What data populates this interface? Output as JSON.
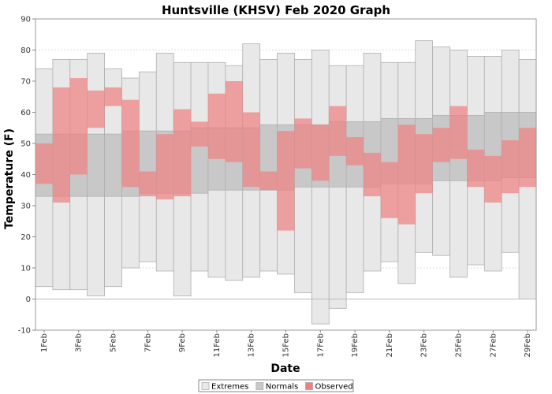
{
  "chart_data": {
    "type": "bar",
    "title": "Huntsville (KHSV) Feb 2020 Graph",
    "xlabel": "Date",
    "ylabel": "Temperature (F)",
    "ylim": [
      -10,
      90
    ],
    "yticks": [
      -10,
      0,
      10,
      20,
      30,
      40,
      50,
      60,
      70,
      80,
      90
    ],
    "grid": true,
    "legend_position": "bottom",
    "categories": [
      "1Feb",
      "2Feb",
      "3Feb",
      "4Feb",
      "5Feb",
      "6Feb",
      "7Feb",
      "8Feb",
      "9Feb",
      "10Feb",
      "11Feb",
      "12Feb",
      "13Feb",
      "14Feb",
      "15Feb",
      "16Feb",
      "17Feb",
      "18Feb",
      "19Feb",
      "20Feb",
      "21Feb",
      "22Feb",
      "23Feb",
      "24Feb",
      "25Feb",
      "26Feb",
      "27Feb",
      "28Feb",
      "29Feb"
    ],
    "xtick_labels": [
      "1Feb",
      "3Feb",
      "5Feb",
      "7Feb",
      "9Feb",
      "11Feb",
      "13Feb",
      "15Feb",
      "17Feb",
      "19Feb",
      "21Feb",
      "23Feb",
      "25Feb",
      "27Feb",
      "29Feb"
    ],
    "series": [
      {
        "name": "Extremes",
        "color": "#e8e8e8",
        "low": [
          4,
          3,
          3,
          1,
          4,
          10,
          12,
          9,
          1,
          9,
          7,
          6,
          7,
          9,
          8,
          2,
          -8,
          -3,
          2,
          9,
          12,
          5,
          15,
          14,
          7,
          11,
          9,
          15,
          0
        ],
        "high": [
          74,
          77,
          77,
          79,
          74,
          71,
          73,
          79,
          76,
          76,
          76,
          75,
          82,
          77,
          79,
          77,
          80,
          75,
          75,
          79,
          76,
          76,
          83,
          81,
          80,
          78,
          78,
          80,
          77
        ]
      },
      {
        "name": "Normals",
        "color": "#c8c8c8",
        "low": [
          33,
          33,
          33,
          33,
          33,
          33,
          34,
          34,
          34,
          34,
          35,
          35,
          35,
          35,
          35,
          36,
          36,
          36,
          36,
          36,
          37,
          37,
          37,
          38,
          38,
          38,
          38,
          39,
          39
        ],
        "high": [
          53,
          53,
          53,
          53,
          53,
          54,
          54,
          54,
          54,
          55,
          55,
          55,
          55,
          56,
          56,
          56,
          56,
          57,
          57,
          57,
          58,
          58,
          58,
          59,
          59,
          59,
          60,
          60,
          60
        ]
      },
      {
        "name": "Observed",
        "color": "#f08080",
        "low": [
          37,
          31,
          40,
          55,
          62,
          36,
          33,
          32,
          33,
          49,
          45,
          44,
          36,
          35,
          22,
          42,
          38,
          46,
          43,
          33,
          26,
          24,
          34,
          44,
          45,
          36,
          31,
          34,
          36
        ],
        "high": [
          50,
          68,
          71,
          67,
          68,
          64,
          41,
          53,
          61,
          57,
          66,
          70,
          60,
          41,
          54,
          58,
          56,
          62,
          52,
          47,
          44,
          56,
          53,
          55,
          62,
          48,
          46,
          51,
          55
        ]
      }
    ]
  }
}
